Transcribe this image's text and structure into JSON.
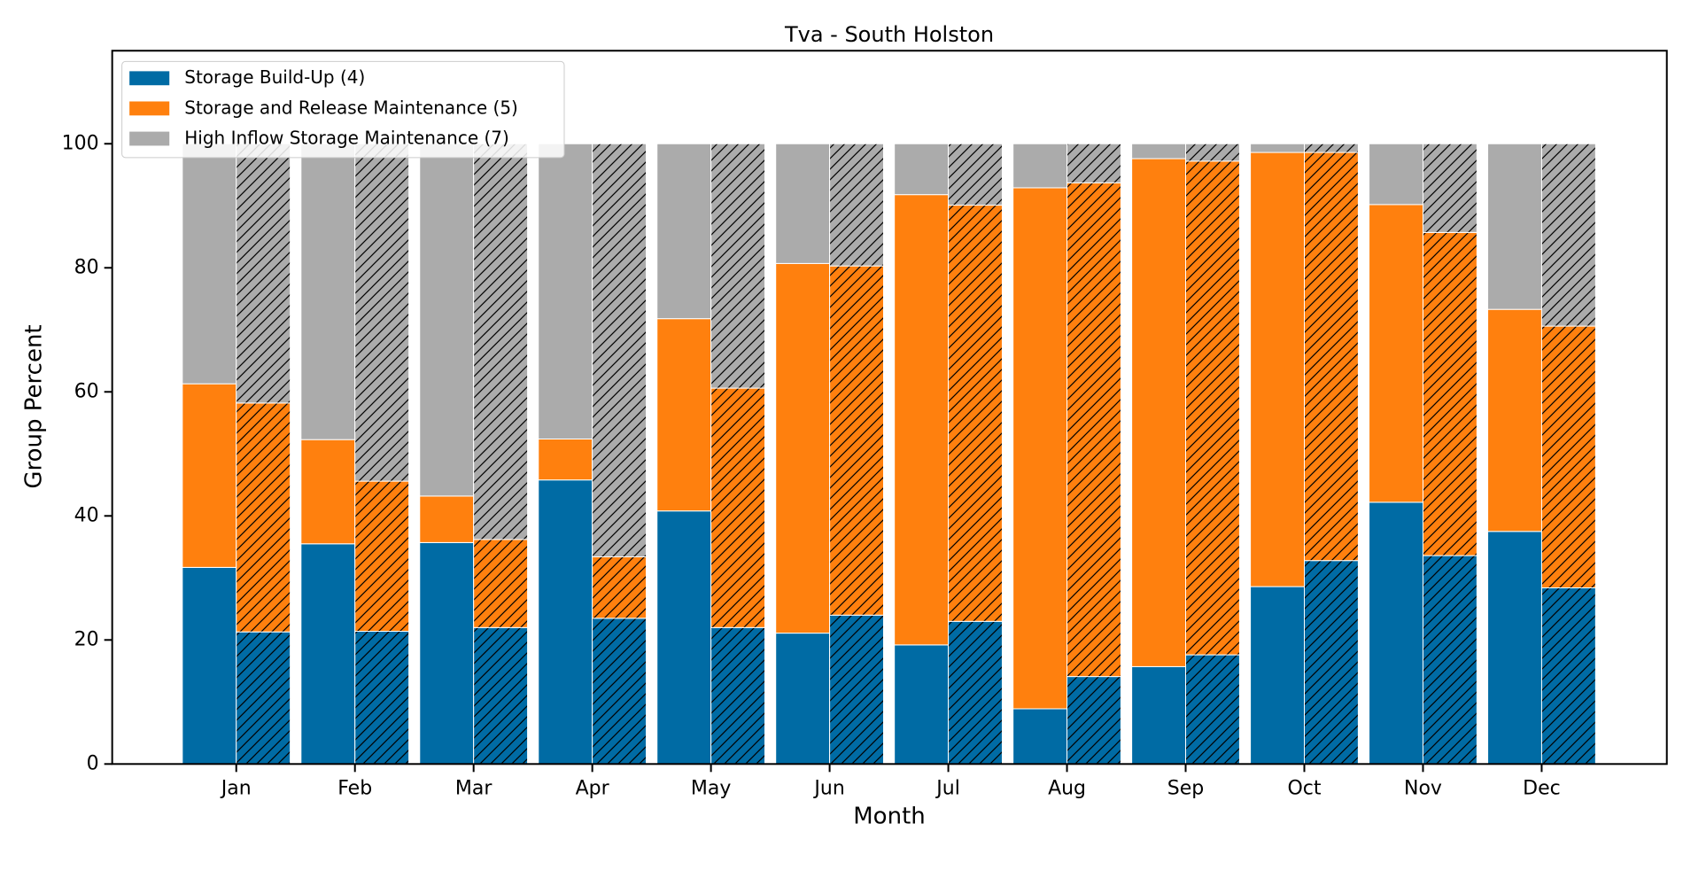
{
  "chart_data": {
    "type": "grouped-stacked-bar",
    "title": "Tva - South Holston",
    "x_label": "Month",
    "y_label": "Group Percent",
    "categories": [
      "Jan",
      "Feb",
      "Mar",
      "Apr",
      "May",
      "Jun",
      "Jul",
      "Aug",
      "Sep",
      "Oct",
      "Nov",
      "Dec"
    ],
    "series": [
      {
        "name": "Storage Build-Up (4)",
        "color": "#006ba4",
        "values": [
          31.7,
          35.5,
          35.7,
          45.8,
          40.8,
          21.1,
          19.2,
          8.9,
          15.7,
          28.6,
          42.2,
          37.5
        ],
        "hatched_values": [
          21.3,
          21.4,
          22.0,
          23.5,
          22.0,
          24.0,
          23.0,
          14.1,
          17.6,
          32.8,
          33.6,
          28.4
        ]
      },
      {
        "name": "Storage and Release Maintenance (5)",
        "color": "#ff800e",
        "values": [
          29.6,
          16.8,
          7.5,
          6.6,
          31.0,
          59.6,
          72.6,
          84.0,
          81.9,
          70.0,
          48.0,
          35.8
        ],
        "hatched_values": [
          36.9,
          24.2,
          14.2,
          9.9,
          38.6,
          56.3,
          67.1,
          79.6,
          79.6,
          65.8,
          52.1,
          42.2
        ]
      },
      {
        "name": "High Inflow Storage Maintenance (7)",
        "color": "#ababab",
        "values": [
          38.7,
          47.7,
          56.8,
          47.6,
          28.2,
          19.3,
          8.2,
          7.1,
          2.4,
          1.4,
          9.8,
          26.7
        ],
        "hatched_values": [
          41.8,
          54.4,
          63.8,
          66.6,
          39.4,
          19.7,
          9.9,
          6.3,
          2.8,
          1.4,
          14.3,
          29.4
        ]
      }
    ],
    "ylim": [
      0,
      115
    ],
    "yticks": [
      0,
      20,
      40,
      60,
      80,
      100
    ],
    "grid": false,
    "legend": "upper left"
  }
}
